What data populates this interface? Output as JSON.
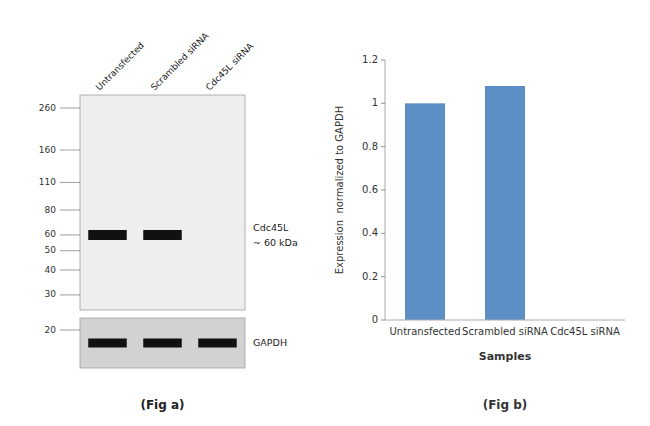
{
  "chart_data": [
    {
      "type": "blot",
      "categories": [
        "Untransfected",
        "Scrambled siRNA",
        "Cdc45L siRNA"
      ],
      "log": "y",
      "ylim": [
        20,
        260
      ],
      "yticks": [
        260,
        160,
        110,
        80,
        60,
        50,
        40,
        30,
        20
      ],
      "color": "#111111",
      "annotations": [
        "Cdc45L",
        "~ 60 kDa",
        "GAPDH",
        "(Fig a)"
      ]
    },
    {
      "type": "bar",
      "categories": [
        "Untransfected",
        "Scrambled siRNA",
        "Cdc45L siRNA"
      ],
      "values": [
        1.0,
        1.08,
        0.0
      ],
      "color": "#5b8ec4",
      "xlabel": "Samples",
      "ylabel": "Expression  normalized to GAPDH",
      "ylim": [
        0,
        1.2
      ],
      "yticks": [
        0,
        0.2,
        0.4,
        0.6,
        0.8,
        1.0,
        1.2
      ],
      "annotations": [
        "(Fig b)"
      ]
    }
  ]
}
